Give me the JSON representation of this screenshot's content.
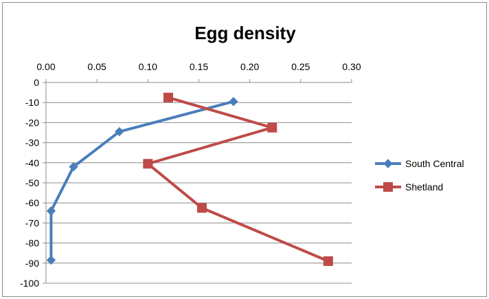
{
  "chart_data": {
    "type": "line",
    "title": "Egg density",
    "xlim": [
      0,
      0.3
    ],
    "ylim": [
      -100,
      0
    ],
    "x_ticks": [
      "0.00",
      "0.05",
      "0.10",
      "0.15",
      "0.20",
      "0.25",
      "0.30"
    ],
    "y_ticks": [
      "0",
      "-10",
      "-20",
      "-30",
      "-40",
      "-50",
      "-60",
      "-70",
      "-80",
      "-90",
      "-100"
    ],
    "x_axis_position": "top",
    "grid": "horizontal",
    "legend_position": "right",
    "series": [
      {
        "name": "South Central",
        "color": "#4a7ebb",
        "marker": "diamond",
        "points": [
          {
            "x": 0.184,
            "y": -9.5
          },
          {
            "x": 0.072,
            "y": -24.5
          },
          {
            "x": 0.027,
            "y": -42
          },
          {
            "x": 0.005,
            "y": -64
          },
          {
            "x": 0.005,
            "y": -88.5
          }
        ]
      },
      {
        "name": "Shetland",
        "color": "#be4b48",
        "marker": "square",
        "points": [
          {
            "x": 0.12,
            "y": -7.5
          },
          {
            "x": 0.222,
            "y": -22.5
          },
          {
            "x": 0.1,
            "y": -40.5
          },
          {
            "x": 0.153,
            "y": -62.5
          },
          {
            "x": 0.277,
            "y": -89
          }
        ]
      }
    ]
  }
}
